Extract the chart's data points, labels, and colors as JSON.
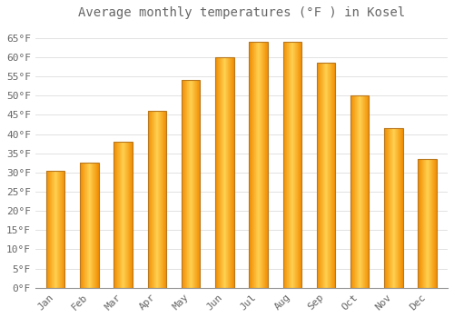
{
  "title": "Average monthly temperatures (°F ) in Kosel",
  "months": [
    "Jan",
    "Feb",
    "Mar",
    "Apr",
    "May",
    "Jun",
    "Jul",
    "Aug",
    "Sep",
    "Oct",
    "Nov",
    "Dec"
  ],
  "values": [
    30.5,
    32.5,
    38,
    46,
    54,
    60,
    64,
    64,
    58.5,
    50,
    41.5,
    33.5
  ],
  "bar_color_main": "#FFA500",
  "bar_color_light": "#FFD060",
  "bar_edge_color": "#CC8800",
  "background_color": "#FFFFFF",
  "plot_bg_color": "#FFFFFF",
  "grid_color": "#DDDDDD",
  "text_color": "#666666",
  "title_fontsize": 10,
  "tick_fontsize": 8,
  "ylim": [
    0,
    68
  ],
  "yticks": [
    0,
    5,
    10,
    15,
    20,
    25,
    30,
    35,
    40,
    45,
    50,
    55,
    60,
    65
  ],
  "bar_width": 0.55
}
